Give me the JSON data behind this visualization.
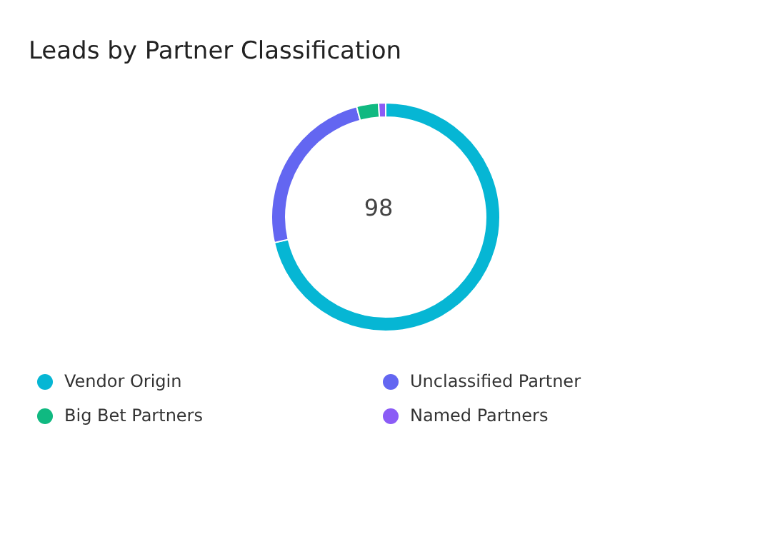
{
  "chart_data": {
    "type": "donut",
    "title": "Leads by Partner Classification",
    "categories": [
      "Vendor Origin",
      "Unclassified Partner",
      "Big Bet Partners",
      "Named Partners"
    ],
    "values": [
      71.4,
      24.5,
      3.1,
      1.0
    ],
    "colors": [
      "#06b6d4",
      "#6366f1",
      "#10b981",
      "#8b5cf6"
    ],
    "annotations": [
      "98"
    ],
    "legend": "bottom"
  }
}
